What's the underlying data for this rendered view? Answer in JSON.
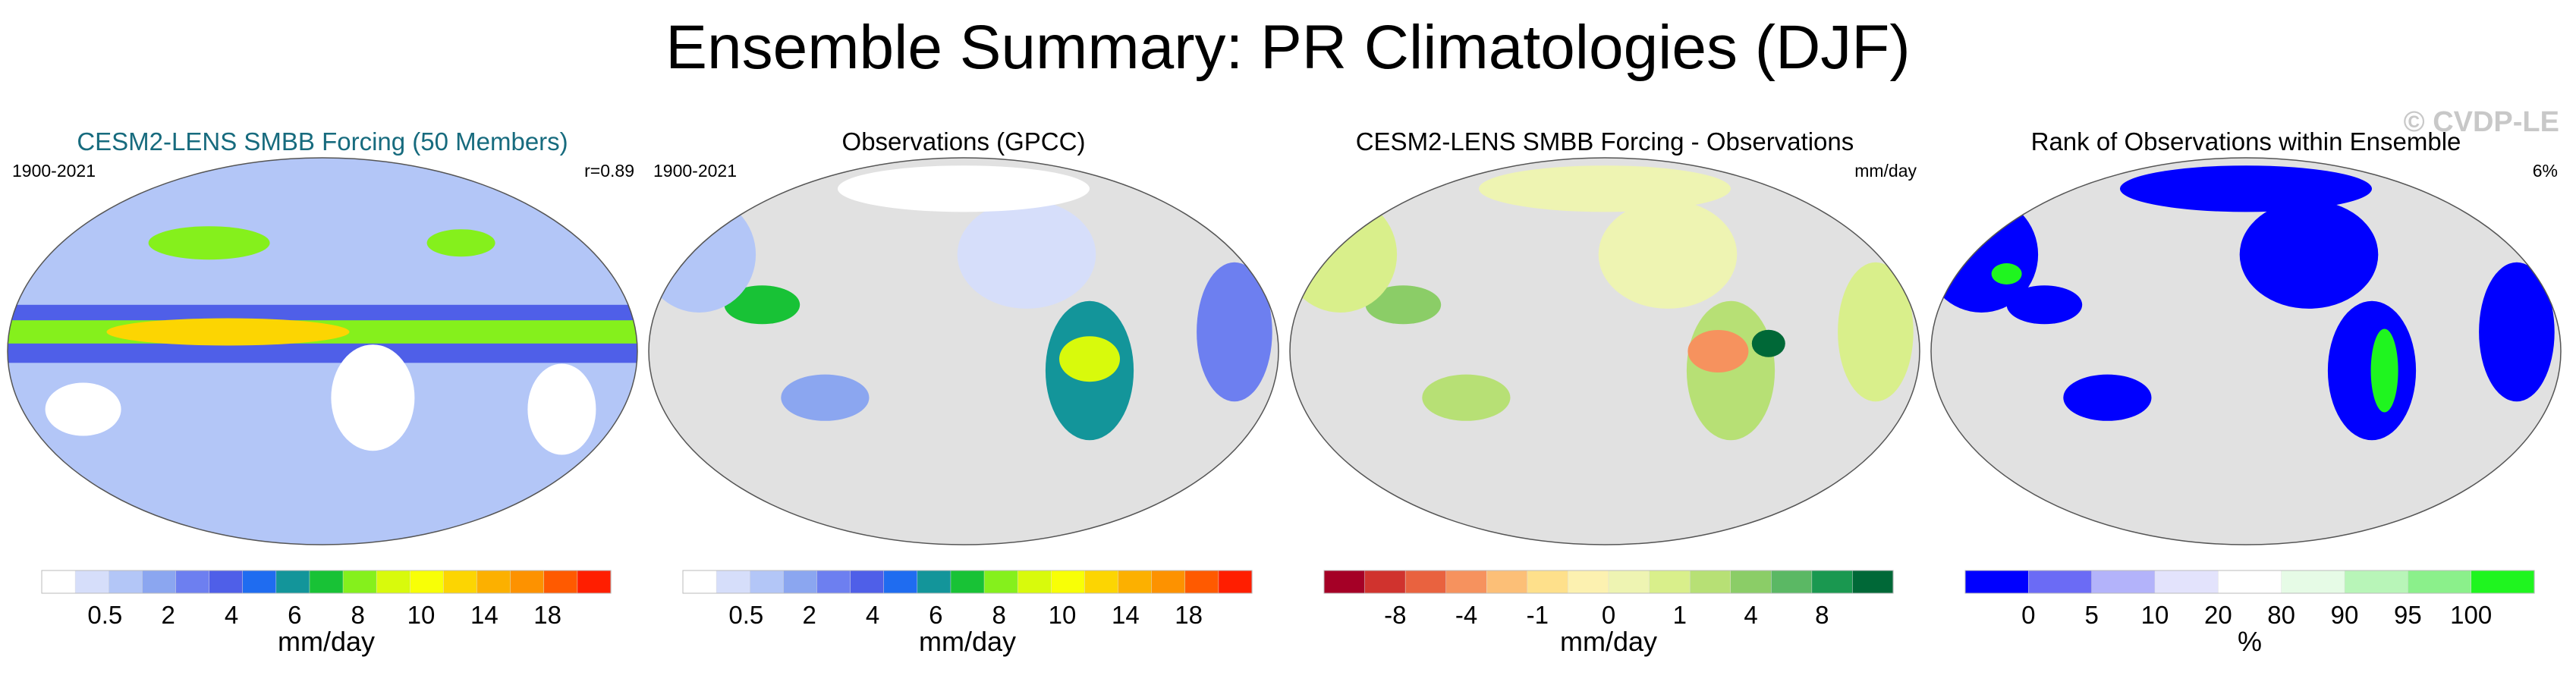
{
  "title": "Ensemble Summary: PR Climatologies (DJF)",
  "watermark": "© CVDP-LE",
  "panels": [
    {
      "title": "CESM2-LENS SMBB Forcing (50 Members)",
      "title_color": "#176b7e",
      "left_label": "1900-2021",
      "right_label": "r=0.89",
      "map": "model",
      "colorbar": {
        "colors": [
          "#ffffff",
          "#d6defa",
          "#b3c6f7",
          "#8ba6f0",
          "#6d7ff0",
          "#4f5fe8",
          "#1f6cf0",
          "#13959a",
          "#18c236",
          "#85f01c",
          "#d8fa0c",
          "#f8ff06",
          "#fcd502",
          "#fcb000",
          "#fd9200",
          "#ff5a00",
          "#ff1e00"
        ],
        "tick_labels": [
          "0.5",
          "2",
          "4",
          "6",
          "8",
          "10",
          "14",
          "18"
        ],
        "label": "mm/day"
      }
    },
    {
      "title": "Observations (GPCC)",
      "title_color": "#000000",
      "left_label": "1900-2021",
      "right_label": "",
      "map": "obs",
      "colorbar": {
        "colors": [
          "#ffffff",
          "#d6defa",
          "#b3c6f7",
          "#8ba6f0",
          "#6d7ff0",
          "#4f5fe8",
          "#1f6cf0",
          "#13959a",
          "#18c236",
          "#85f01c",
          "#d8fa0c",
          "#f8ff06",
          "#fcd502",
          "#fcb000",
          "#fd9200",
          "#ff5a00",
          "#ff1e00"
        ],
        "tick_labels": [
          "0.5",
          "2",
          "4",
          "6",
          "8",
          "10",
          "14",
          "18"
        ],
        "label": "mm/day"
      }
    },
    {
      "title": "CESM2-LENS SMBB Forcing - Observations",
      "title_color": "#000000",
      "left_label": "",
      "right_label": "mm/day",
      "map": "diff",
      "colorbar": {
        "colors": [
          "#a50026",
          "#d0332e",
          "#e9623f",
          "#f6925e",
          "#fcbf77",
          "#fee08b",
          "#fcf1b0",
          "#eef4b2",
          "#d9ef8b",
          "#b7e075",
          "#8bcd67",
          "#5bb864",
          "#1a9850",
          "#006837"
        ],
        "tick_labels": [
          "-8",
          "-4",
          "-1",
          "0",
          "1",
          "4",
          "8"
        ],
        "label": "mm/day"
      }
    },
    {
      "title": "Rank of Observations within Ensemble",
      "title_color": "#000000",
      "left_label": "",
      "right_label": "6%",
      "map": "rank",
      "colorbar": {
        "colors": [
          "#0000ff",
          "#6b6bf5",
          "#b3b3fa",
          "#e3e3fc",
          "#ffffff",
          "#e6fbe6",
          "#b8f5b8",
          "#8bf08b",
          "#1ff51f"
        ],
        "tick_labels": [
          "0",
          "5",
          "10",
          "20",
          "80",
          "90",
          "95",
          "100"
        ],
        "label": "%"
      }
    }
  ],
  "chart_data": [
    {
      "type": "heatmap",
      "title": "CESM2-LENS SMBB Forcing (50 Members)",
      "period": "1900-2021",
      "pattern_correlation": "r=0.89",
      "colorbar_ticks": [
        0.5,
        2,
        4,
        6,
        8,
        10,
        14,
        18
      ],
      "units": "mm/day"
    },
    {
      "type": "heatmap",
      "title": "Observations (GPCC)",
      "period": "1900-2021",
      "colorbar_ticks": [
        0.5,
        2,
        4,
        6,
        8,
        10,
        14,
        18
      ],
      "units": "mm/day"
    },
    {
      "type": "heatmap",
      "title": "CESM2-LENS SMBB Forcing - Observations",
      "colorbar_ticks": [
        -8,
        -4,
        -1,
        0,
        1,
        4,
        8
      ],
      "units": "mm/day"
    },
    {
      "type": "heatmap",
      "title": "Rank of Observations within Ensemble",
      "summary": "6%",
      "colorbar_ticks": [
        0,
        5,
        10,
        20,
        80,
        90,
        95,
        100
      ],
      "units": "%"
    }
  ]
}
